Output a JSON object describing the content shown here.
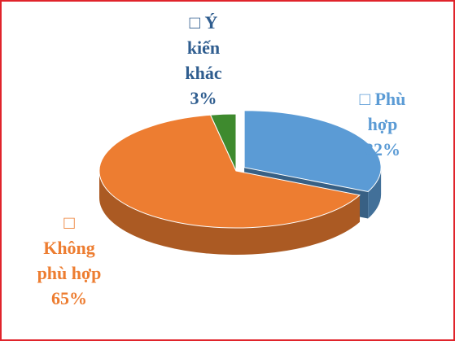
{
  "chart_data": {
    "type": "pie3d",
    "marker": "□",
    "categories": [
      "Phù hợp",
      "Không phù hợp",
      "Ý kiến khác"
    ],
    "values": [
      32,
      65,
      3
    ],
    "value_labels": [
      "32%",
      "65%",
      "3%"
    ],
    "colors": [
      "#5b9bd5",
      "#ed7d31",
      "#3e8a2e"
    ],
    "explode": [
      true,
      false,
      false
    ]
  }
}
